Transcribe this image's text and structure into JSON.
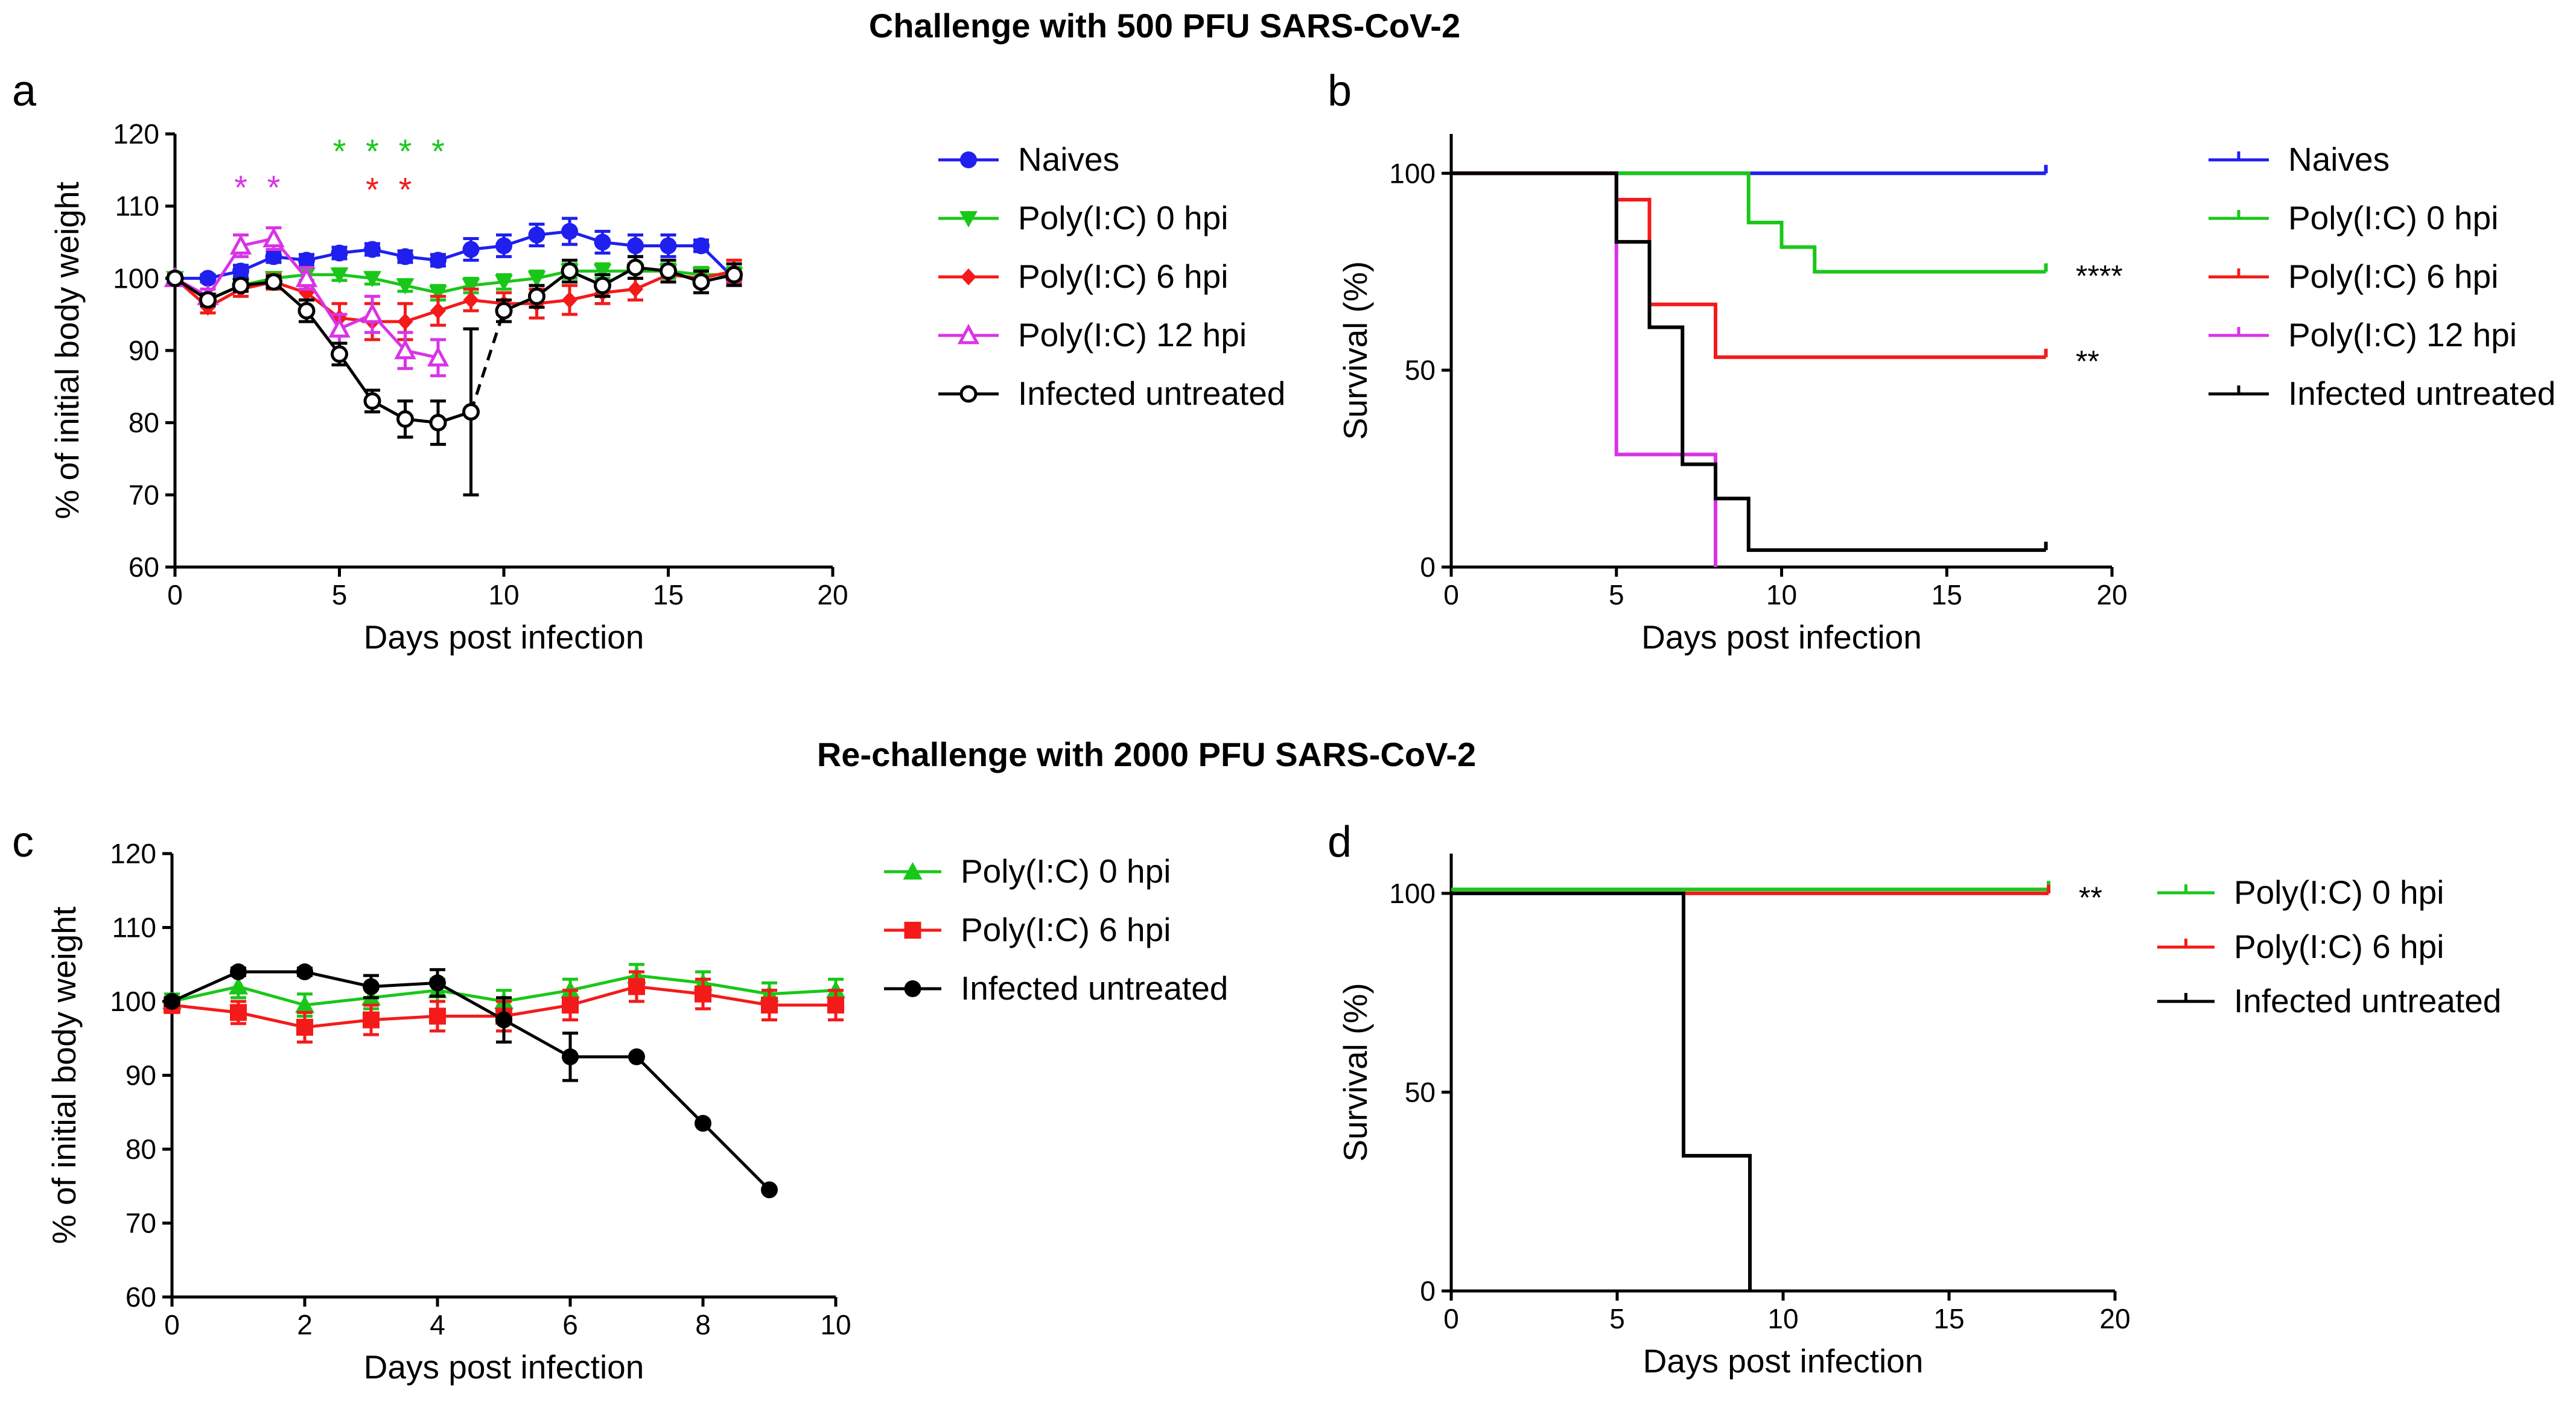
{
  "figure": {
    "title_top": "Challenge with 500 PFU SARS-CoV-2",
    "title_bottom": "Re-challenge with 2000 PFU SARS-CoV-2"
  },
  "colors": {
    "blue": "#1f1fef",
    "green": "#19c719",
    "red": "#f41a1a",
    "magenta": "#d933e6",
    "black": "#000000"
  },
  "chart_data": [
    {
      "id": "a",
      "panel_label": "a",
      "type": "line",
      "xlabel": "Days post infection",
      "ylabel": "% of initial body weight",
      "xlim": [
        0,
        20
      ],
      "ylim": [
        60,
        120
      ],
      "xticks": [
        0,
        5,
        10,
        15,
        20
      ],
      "yticks": [
        60,
        70,
        80,
        90,
        100,
        110,
        120
      ],
      "series": [
        {
          "name": "Naives",
          "color": "blue",
          "marker": "circle",
          "x": [
            0,
            1,
            2,
            3,
            4,
            5,
            6,
            7,
            8,
            9,
            10,
            11,
            12,
            13,
            14,
            15,
            16,
            17
          ],
          "y": [
            100,
            100,
            101,
            103,
            102.5,
            103.5,
            104,
            103,
            102.5,
            104,
            104.5,
            106,
            106.5,
            105,
            104.5,
            104.5,
            104.5,
            100
          ],
          "err": [
            0.5,
            0.5,
            0.8,
            0.8,
            0.8,
            0.8,
            0.8,
            0.8,
            0.8,
            1.5,
            1.5,
            1.5,
            1.8,
            1.5,
            1.5,
            1.5,
            0.8,
            0.8
          ]
        },
        {
          "name": "Poly(I:C) 0 hpi",
          "color": "green",
          "marker": "triangle-down",
          "x": [
            0,
            1,
            2,
            3,
            4,
            5,
            6,
            7,
            8,
            9,
            10,
            11,
            12,
            13,
            14,
            15,
            16,
            17
          ],
          "y": [
            100,
            97,
            99,
            100,
            100.5,
            100.5,
            100,
            99,
            98,
            99,
            99.5,
            100,
            101,
            101,
            101,
            101,
            100.5,
            100.5
          ],
          "err": [
            0.5,
            0.8,
            0.8,
            0.8,
            0.8,
            0.8,
            0.8,
            0.8,
            1,
            1,
            1,
            1,
            1,
            1,
            1,
            1,
            1,
            1
          ]
        },
        {
          "name": "Poly(I:C) 6 hpi",
          "color": "red",
          "marker": "diamond",
          "x": [
            0,
            1,
            2,
            3,
            4,
            5,
            6,
            7,
            8,
            9,
            10,
            11,
            12,
            13,
            14,
            15,
            16,
            17
          ],
          "y": [
            100,
            96,
            98.5,
            99.5,
            98,
            94.5,
            94,
            94,
            95.5,
            97,
            96.5,
            96.5,
            97,
            98,
            98.5,
            100.5,
            100,
            101
          ],
          "err": [
            0.5,
            0.8,
            1,
            1,
            1,
            2,
            2.5,
            2.5,
            2,
            1.5,
            1.5,
            2,
            2,
            1.5,
            1.5,
            1,
            1,
            1.5
          ]
        },
        {
          "name": "Poly(I:C) 12 hpi",
          "color": "magenta",
          "marker": "triangle-up-open",
          "x": [
            0,
            1,
            2,
            3,
            4,
            5,
            6,
            7,
            8
          ],
          "y": [
            100,
            97.5,
            104.5,
            105.5,
            100,
            93,
            95,
            90,
            89
          ],
          "err": [
            0.5,
            1,
            1.5,
            1.5,
            1.5,
            2,
            2.5,
            2.5,
            2.5
          ]
        },
        {
          "name": "Infected untreated",
          "color": "black",
          "marker": "circle-open",
          "x": [
            0,
            1,
            2,
            3,
            4,
            5,
            6,
            7,
            8,
            9,
            10,
            11,
            12,
            13,
            14,
            15,
            16,
            17
          ],
          "y": [
            100,
            97,
            99,
            99.5,
            95.5,
            89.5,
            83,
            80.5,
            80,
            81.5,
            95.5,
            97.5,
            101,
            99,
            101.5,
            101,
            99.5,
            100.5
          ],
          "err": [
            0.5,
            0.8,
            0.8,
            0.8,
            1.5,
            1.5,
            1.5,
            2.5,
            3,
            11.5,
            1.5,
            1.5,
            1.5,
            1.5,
            1.5,
            1.5,
            1.5,
            1.5
          ],
          "dashed_from_index": 9
        }
      ],
      "annotations": [
        {
          "text": "*",
          "x": 2,
          "y": 113.5,
          "color": "magenta"
        },
        {
          "text": "*",
          "x": 3,
          "y": 113.5,
          "color": "magenta"
        },
        {
          "text": "*",
          "x": 5,
          "y": 118.5,
          "color": "green"
        },
        {
          "text": "*",
          "x": 6,
          "y": 118.5,
          "color": "green"
        },
        {
          "text": "*",
          "x": 7,
          "y": 118.5,
          "color": "green"
        },
        {
          "text": "*",
          "x": 8,
          "y": 118.5,
          "color": "green"
        },
        {
          "text": "*",
          "x": 6,
          "y": 113.2,
          "color": "red"
        },
        {
          "text": "*",
          "x": 7,
          "y": 113.2,
          "color": "red"
        }
      ],
      "legend": [
        "Naives",
        "Poly(I:C) 0 hpi",
        "Poly(I:C) 6 hpi",
        "Poly(I:C) 12 hpi",
        "Infected untreated"
      ]
    },
    {
      "id": "b",
      "panel_label": "b",
      "type": "line",
      "subtype": "survival-step",
      "xlabel": "Days post infection",
      "ylabel": "Survival (%)",
      "xlim": [
        0,
        20
      ],
      "ylim": [
        0,
        110
      ],
      "xticks": [
        0,
        5,
        10,
        15,
        20
      ],
      "yticks": [
        0,
        50,
        100
      ],
      "series": [
        {
          "name": "Naives",
          "color": "blue",
          "steps": [
            [
              0,
              100
            ],
            [
              18,
              100
            ]
          ]
        },
        {
          "name": "Poly(I:C) 0 hpi",
          "color": "green",
          "steps": [
            [
              0,
              100
            ],
            [
              9,
              100
            ],
            [
              9,
              87.5
            ],
            [
              10,
              87.5
            ],
            [
              10,
              81.25
            ],
            [
              11,
              81.25
            ],
            [
              11,
              75
            ],
            [
              18,
              75
            ]
          ]
        },
        {
          "name": "Poly(I:C) 6 hpi",
          "color": "red",
          "steps": [
            [
              0,
              100
            ],
            [
              5,
              100
            ],
            [
              5,
              93.3
            ],
            [
              6,
              93.3
            ],
            [
              6,
              66.7
            ],
            [
              8,
              66.7
            ],
            [
              8,
              53.3
            ],
            [
              18,
              53.3
            ]
          ]
        },
        {
          "name": "Poly(I:C) 12 hpi",
          "color": "magenta",
          "steps": [
            [
              0,
              100
            ],
            [
              5,
              100
            ],
            [
              5,
              28.6
            ],
            [
              8,
              28.6
            ],
            [
              8,
              0
            ]
          ]
        },
        {
          "name": "Infected untreated",
          "color": "black",
          "steps": [
            [
              0,
              100
            ],
            [
              5,
              100
            ],
            [
              5,
              82.6
            ],
            [
              6,
              82.6
            ],
            [
              6,
              60.9
            ],
            [
              7,
              60.9
            ],
            [
              7,
              26.1
            ],
            [
              8,
              26.1
            ],
            [
              8,
              17.4
            ],
            [
              9,
              17.4
            ],
            [
              9,
              4.3
            ],
            [
              18,
              4.3
            ]
          ]
        }
      ],
      "significance": [
        {
          "text": "****",
          "y": 75
        },
        {
          "text": "**",
          "y": 53.3
        }
      ],
      "legend": [
        "Naives",
        "Poly(I:C) 0 hpi",
        "Poly(I:C) 6 hpi",
        "Poly(I:C) 12 hpi",
        "Infected untreated"
      ]
    },
    {
      "id": "c",
      "panel_label": "c",
      "type": "line",
      "xlabel": "Days post infection",
      "ylabel": "% of initial body weight",
      "xlim": [
        0,
        10
      ],
      "ylim": [
        60,
        120
      ],
      "xticks": [
        0,
        2,
        4,
        6,
        8,
        10
      ],
      "yticks": [
        60,
        70,
        80,
        90,
        100,
        110,
        120
      ],
      "series": [
        {
          "name": "Poly(I:C) 0 hpi",
          "color": "green",
          "marker": "triangle-up",
          "x": [
            0,
            1,
            2,
            3,
            4,
            5,
            6,
            7,
            8,
            9,
            10
          ],
          "y": [
            100,
            102,
            99.5,
            100.5,
            101.5,
            100,
            101.5,
            103.5,
            102.5,
            101,
            101.5
          ],
          "err": [
            1,
            1.5,
            1.5,
            1.5,
            1.5,
            1.5,
            1.5,
            1.5,
            1.5,
            1.5,
            1.5
          ]
        },
        {
          "name": "Poly(I:C) 6 hpi",
          "color": "red",
          "marker": "square",
          "x": [
            0,
            1,
            2,
            3,
            4,
            5,
            6,
            7,
            8,
            9,
            10
          ],
          "y": [
            99.5,
            98.5,
            96.5,
            97.5,
            98,
            98,
            99.5,
            102,
            101,
            99.5,
            99.5
          ],
          "err": [
            1,
            1.5,
            2,
            2,
            2,
            2,
            2,
            2,
            2,
            2,
            2
          ]
        },
        {
          "name": "Infected untreated",
          "color": "black",
          "marker": "circle",
          "x": [
            0,
            1,
            2,
            3,
            4,
            5,
            6,
            7,
            8,
            9
          ],
          "y": [
            100,
            104,
            104,
            102,
            102.5,
            97.5,
            92.5,
            92.5,
            83.5,
            74.5
          ],
          "err": [
            0.5,
            0.5,
            0.5,
            1.5,
            1.8,
            3,
            3.2,
            0,
            0,
            0
          ]
        }
      ],
      "legend": [
        "Poly(I:C) 0 hpi",
        "Poly(I:C) 6 hpi",
        "Infected untreated"
      ]
    },
    {
      "id": "d",
      "panel_label": "d",
      "type": "line",
      "subtype": "survival-step",
      "xlabel": "Days post infection",
      "ylabel": "Survival (%)",
      "xlim": [
        0,
        20
      ],
      "ylim": [
        0,
        110
      ],
      "xticks": [
        0,
        5,
        10,
        15,
        20
      ],
      "yticks": [
        0,
        50,
        100
      ],
      "series": [
        {
          "name": "Poly(I:C) 0 hpi",
          "color": "green",
          "steps": [
            [
              0,
              101
            ],
            [
              18,
              101
            ]
          ]
        },
        {
          "name": "Poly(I:C) 6 hpi",
          "color": "red",
          "steps": [
            [
              0,
              100
            ],
            [
              18,
              100
            ]
          ]
        },
        {
          "name": "Infected untreated",
          "color": "black",
          "steps": [
            [
              0,
              100
            ],
            [
              7,
              100
            ],
            [
              7,
              34
            ],
            [
              9,
              34
            ],
            [
              9,
              0
            ]
          ]
        }
      ],
      "significance": [
        {
          "text": "**",
          "y": 100
        }
      ],
      "legend": [
        "Poly(I:C) 0 hpi",
        "Poly(I:C) 6 hpi",
        "Infected untreated"
      ]
    }
  ]
}
